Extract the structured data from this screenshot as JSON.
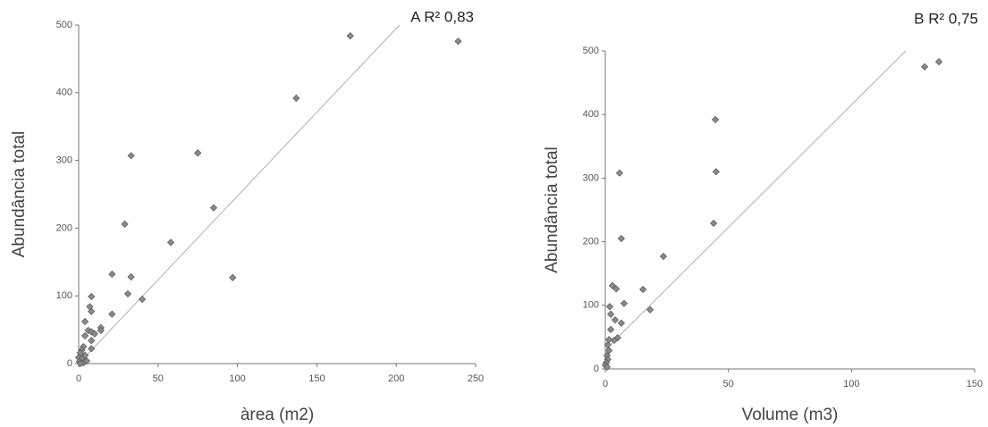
{
  "chart_data": [
    {
      "type": "scatter",
      "title": "A R² 0,83",
      "x_label": "àrea (m2)",
      "y_label": "Abundância total",
      "x": [
        171,
        239,
        137,
        75,
        33,
        85,
        29,
        58,
        21,
        33,
        97,
        8,
        31,
        40,
        21,
        7,
        8,
        4,
        14,
        14,
        6,
        8,
        10,
        4,
        8,
        8,
        3,
        2,
        0,
        1,
        2,
        0.5,
        3,
        5,
        1,
        4
      ],
      "y": [
        484,
        476,
        392,
        311,
        307,
        230,
        206,
        179,
        132,
        128,
        127,
        99,
        103,
        95,
        73,
        84,
        77,
        62,
        53,
        49,
        49,
        47,
        44,
        41,
        34,
        22,
        25,
        20,
        9,
        16,
        7,
        3,
        1,
        4,
        0,
        12
      ],
      "fit": {
        "x": [
          0,
          202
        ],
        "y": [
          0,
          500
        ]
      },
      "color": "#8a8a8a",
      "line_color": "#b0b0b0",
      "xlim": [
        0,
        250
      ],
      "ylim": [
        0,
        500
      ],
      "xticks": [
        0,
        50,
        100,
        150,
        200,
        250
      ],
      "yticks": [
        0,
        100,
        200,
        300,
        400,
        500
      ]
    },
    {
      "type": "scatter",
      "title": "B R² 0,75",
      "x_label": "Volume (m3)",
      "y_label": "Abundância total",
      "x": [
        135.5,
        129.7,
        44.7,
        45,
        5.8,
        44,
        6.5,
        23.6,
        2.9,
        4.4,
        15.3,
        7.6,
        1.8,
        18.2,
        2.2,
        4,
        6.5,
        2.2,
        5,
        3.6,
        1.5,
        1,
        1.5,
        0.7,
        1,
        0.4,
        0,
        0.7
      ],
      "y": [
        483,
        475,
        392,
        310,
        308,
        229,
        205,
        177,
        131,
        126,
        125,
        103,
        98,
        93,
        86,
        77,
        72,
        62,
        49,
        45,
        46,
        38,
        29,
        21,
        15,
        10,
        6,
        3
      ],
      "fit": {
        "x": [
          0,
          122
        ],
        "y": [
          30,
          500
        ]
      },
      "color": "#8a8a8a",
      "line_color": "#b0b0b0",
      "xlim": [
        0,
        150
      ],
      "ylim": [
        0,
        500
      ],
      "xticks": [
        0,
        50,
        100,
        150
      ],
      "yticks": [
        0,
        100,
        200,
        300,
        400,
        500
      ]
    }
  ]
}
